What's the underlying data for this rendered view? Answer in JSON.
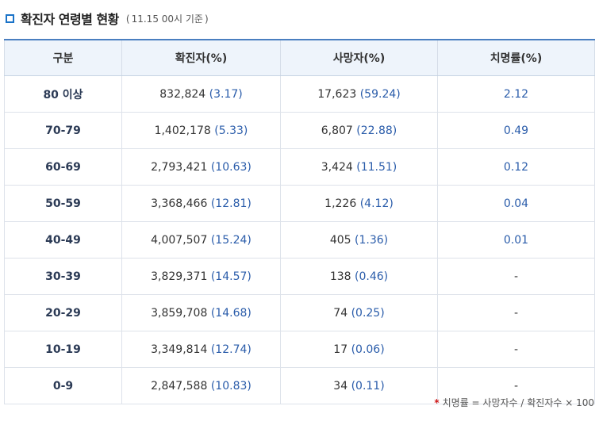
{
  "header": {
    "title": "확진자 연령별 현황",
    "subtitle_open": "(",
    "subtitle": "11.15 00시 기준",
    "subtitle_close": ")"
  },
  "table": {
    "columns": [
      "구분",
      "확진자(%)",
      "사망자(%)",
      "치명률(%)"
    ],
    "rows": [
      {
        "group": "80 이상",
        "cases": "832,824",
        "cases_pct": "(3.17)",
        "deaths": "17,623",
        "deaths_pct": "(59.24)",
        "cfr": "2.12"
      },
      {
        "group": "70-79",
        "cases": "1,402,178",
        "cases_pct": "(5.33)",
        "deaths": "6,807",
        "deaths_pct": "(22.88)",
        "cfr": "0.49"
      },
      {
        "group": "60-69",
        "cases": "2,793,421",
        "cases_pct": "(10.63)",
        "deaths": "3,424",
        "deaths_pct": "(11.51)",
        "cfr": "0.12"
      },
      {
        "group": "50-59",
        "cases": "3,368,466",
        "cases_pct": "(12.81)",
        "deaths": "1,226",
        "deaths_pct": "(4.12)",
        "cfr": "0.04"
      },
      {
        "group": "40-49",
        "cases": "4,007,507",
        "cases_pct": "(15.24)",
        "deaths": "405",
        "deaths_pct": "(1.36)",
        "cfr": "0.01"
      },
      {
        "group": "30-39",
        "cases": "3,829,371",
        "cases_pct": "(14.57)",
        "deaths": "138",
        "deaths_pct": "(0.46)",
        "cfr": "-"
      },
      {
        "group": "20-29",
        "cases": "3,859,708",
        "cases_pct": "(14.68)",
        "deaths": "74",
        "deaths_pct": "(0.25)",
        "cfr": "-"
      },
      {
        "group": "10-19",
        "cases": "3,349,814",
        "cases_pct": "(12.74)",
        "deaths": "17",
        "deaths_pct": "(0.06)",
        "cfr": "-"
      },
      {
        "group": "0-9",
        "cases": "2,847,588",
        "cases_pct": "(10.83)",
        "deaths": "34",
        "deaths_pct": "(0.11)",
        "cfr": "-"
      }
    ]
  },
  "footnote": {
    "mark": "*",
    "text": "치명률 = 사망자수 / 확진자수 × 100"
  },
  "colors": {
    "accent": "#1a73c8",
    "header_bg": "#eef4fb",
    "value_blue": "#2a5caa",
    "footnote_mark": "#d01818"
  }
}
